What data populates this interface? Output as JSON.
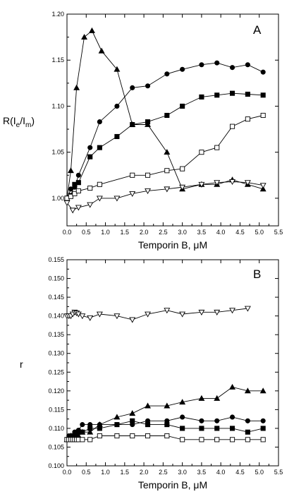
{
  "chart_data": [
    {
      "panel": "A",
      "type": "line",
      "xlabel": "Temporin B, μM",
      "ylabel_main": "R(I",
      "ylabel_sub1": "e",
      "ylabel_mid": "/I",
      "ylabel_sub2": "m",
      "ylabel_end": ")",
      "xlim": [
        0,
        5.5
      ],
      "ylim": [
        0.97,
        1.2
      ],
      "xticks": [
        0.0,
        0.5,
        1.0,
        1.5,
        2.0,
        2.5,
        3.0,
        3.5,
        4.0,
        4.5,
        5.0,
        5.5
      ],
      "xtick_labels": [
        "0.0",
        "0.5",
        "1.0",
        "1.5",
        "2.0",
        "2.5",
        "3.0",
        "3.5",
        "4.0",
        "4.5",
        "5.0",
        "5.5"
      ],
      "yticks": [
        1.0,
        1.05,
        1.1,
        1.15,
        1.2
      ],
      "ytick_labels": [
        "1.00",
        "1.05",
        "1.10",
        "1.15",
        "1.20"
      ],
      "series": [
        {
          "marker": "triangle-up-filled",
          "x": [
            0.0,
            0.1,
            0.25,
            0.45,
            0.65,
            0.9,
            1.3,
            1.7,
            2.1,
            2.6,
            3.0,
            3.5,
            3.9,
            4.3,
            4.7,
            5.1
          ],
          "y": [
            1.0,
            1.03,
            1.12,
            1.175,
            1.182,
            1.16,
            1.14,
            1.08,
            1.08,
            1.05,
            1.01,
            1.015,
            1.015,
            1.02,
            1.015,
            1.01
          ]
        },
        {
          "marker": "circle-filled",
          "x": [
            0.0,
            0.1,
            0.2,
            0.3,
            0.6,
            0.85,
            1.3,
            1.7,
            2.1,
            2.6,
            3.0,
            3.5,
            3.9,
            4.3,
            4.7,
            5.1
          ],
          "y": [
            1.0,
            1.01,
            1.012,
            1.025,
            1.055,
            1.083,
            1.1,
            1.12,
            1.122,
            1.135,
            1.14,
            1.145,
            1.147,
            1.142,
            1.145,
            1.137
          ]
        },
        {
          "marker": "square-filled",
          "x": [
            0.0,
            0.1,
            0.2,
            0.3,
            0.6,
            0.85,
            1.3,
            1.7,
            2.1,
            2.6,
            3.0,
            3.5,
            3.9,
            4.3,
            4.7,
            5.1
          ],
          "y": [
            1.0,
            1.003,
            1.015,
            1.017,
            1.045,
            1.055,
            1.067,
            1.08,
            1.083,
            1.09,
            1.1,
            1.11,
            1.112,
            1.114,
            1.113,
            1.112
          ]
        },
        {
          "marker": "square-open",
          "x": [
            0.0,
            0.1,
            0.2,
            0.3,
            0.6,
            0.85,
            1.7,
            2.1,
            2.6,
            3.0,
            3.5,
            3.9,
            4.3,
            4.7,
            5.1
          ],
          "y": [
            1.0,
            1.002,
            1.005,
            1.008,
            1.011,
            1.015,
            1.025,
            1.025,
            1.03,
            1.032,
            1.05,
            1.055,
            1.078,
            1.086,
            1.09
          ]
        },
        {
          "marker": "triangle-down-open",
          "x": [
            0.0,
            0.15,
            0.3,
            0.6,
            0.85,
            1.3,
            1.7,
            2.1,
            2.6,
            3.0,
            3.5,
            3.9,
            4.3,
            4.7,
            5.1
          ],
          "y": [
            0.995,
            0.987,
            0.99,
            0.993,
            1.0,
            1.0,
            1.005,
            1.008,
            1.01,
            1.012,
            1.015,
            1.017,
            1.018,
            1.017,
            1.014
          ]
        }
      ]
    },
    {
      "panel": "B",
      "type": "line",
      "xlabel": "Temporin B, μM",
      "ylabel": "r",
      "xlim": [
        0,
        5.5
      ],
      "ylim": [
        0.1,
        0.155
      ],
      "xticks": [
        0.0,
        0.5,
        1.0,
        1.5,
        2.0,
        2.5,
        3.0,
        3.5,
        4.0,
        4.5,
        5.0,
        5.5
      ],
      "xtick_labels": [
        "0.0",
        "0.5",
        "1.0",
        "1.5",
        "2.0",
        "2.5",
        "3.0",
        "3.5",
        "4.0",
        "4.5",
        "5.0",
        "5.5"
      ],
      "yticks": [
        0.1,
        0.105,
        0.11,
        0.115,
        0.12,
        0.125,
        0.13,
        0.135,
        0.14,
        0.145,
        0.15,
        0.155
      ],
      "ytick_labels": [
        "0.100",
        "0.105",
        "0.110",
        "0.115",
        "0.120",
        "0.125",
        "0.130",
        "0.135",
        "0.140",
        "0.145",
        "0.150",
        "0.155"
      ],
      "series": [
        {
          "marker": "triangle-down-open",
          "x": [
            0.0,
            0.05,
            0.1,
            0.15,
            0.2,
            0.25,
            0.3,
            0.4,
            0.6,
            0.85,
            1.3,
            1.7,
            2.1,
            2.6,
            3.0,
            3.5,
            3.9,
            4.3,
            4.7
          ],
          "y": [
            0.14,
            0.14,
            0.14,
            0.1405,
            0.141,
            0.1408,
            0.1405,
            0.14,
            0.1395,
            0.1405,
            0.14,
            0.139,
            0.1405,
            0.1415,
            0.1405,
            0.141,
            0.141,
            0.1415,
            0.142
          ]
        },
        {
          "marker": "triangle-up-filled",
          "x": [
            0.0,
            0.05,
            0.1,
            0.15,
            0.2,
            0.25,
            0.3,
            0.4,
            0.6,
            0.85,
            1.3,
            1.7,
            2.1,
            2.6,
            3.0,
            3.5,
            3.9,
            4.3,
            4.7,
            5.1
          ],
          "y": [
            0.107,
            0.107,
            0.108,
            0.108,
            0.108,
            0.109,
            0.108,
            0.109,
            0.109,
            0.111,
            0.113,
            0.114,
            0.116,
            0.116,
            0.117,
            0.118,
            0.118,
            0.121,
            0.12,
            0.12
          ]
        },
        {
          "marker": "circle-filled",
          "x": [
            0.0,
            0.05,
            0.1,
            0.15,
            0.2,
            0.25,
            0.3,
            0.4,
            0.6,
            0.85,
            1.3,
            1.7,
            2.1,
            2.6,
            3.0,
            3.5,
            3.9,
            4.3,
            4.7,
            5.1
          ],
          "y": [
            0.107,
            0.108,
            0.108,
            0.108,
            0.109,
            0.109,
            0.1095,
            0.111,
            0.111,
            0.111,
            0.111,
            0.111,
            0.112,
            0.112,
            0.113,
            0.112,
            0.112,
            0.113,
            0.112,
            0.112
          ]
        },
        {
          "marker": "square-filled",
          "x": [
            0.0,
            0.05,
            0.1,
            0.15,
            0.2,
            0.25,
            0.3,
            0.4,
            0.6,
            0.85,
            1.3,
            1.7,
            2.1,
            2.6,
            3.0,
            3.5,
            3.9,
            4.3,
            4.7,
            5.1
          ],
          "y": [
            0.107,
            0.107,
            0.107,
            0.108,
            0.108,
            0.108,
            0.109,
            0.109,
            0.11,
            0.11,
            0.111,
            0.112,
            0.111,
            0.111,
            0.11,
            0.11,
            0.11,
            0.11,
            0.109,
            0.11
          ]
        },
        {
          "marker": "square-open",
          "x": [
            0.0,
            0.05,
            0.1,
            0.15,
            0.2,
            0.25,
            0.3,
            0.4,
            0.6,
            0.85,
            1.3,
            1.7,
            2.1,
            2.6,
            3.0,
            3.5,
            3.9,
            4.3,
            4.7,
            5.1
          ],
          "y": [
            0.107,
            0.107,
            0.107,
            0.107,
            0.107,
            0.107,
            0.107,
            0.107,
            0.107,
            0.108,
            0.108,
            0.108,
            0.108,
            0.108,
            0.107,
            0.107,
            0.107,
            0.107,
            0.107,
            0.107
          ]
        }
      ]
    }
  ]
}
